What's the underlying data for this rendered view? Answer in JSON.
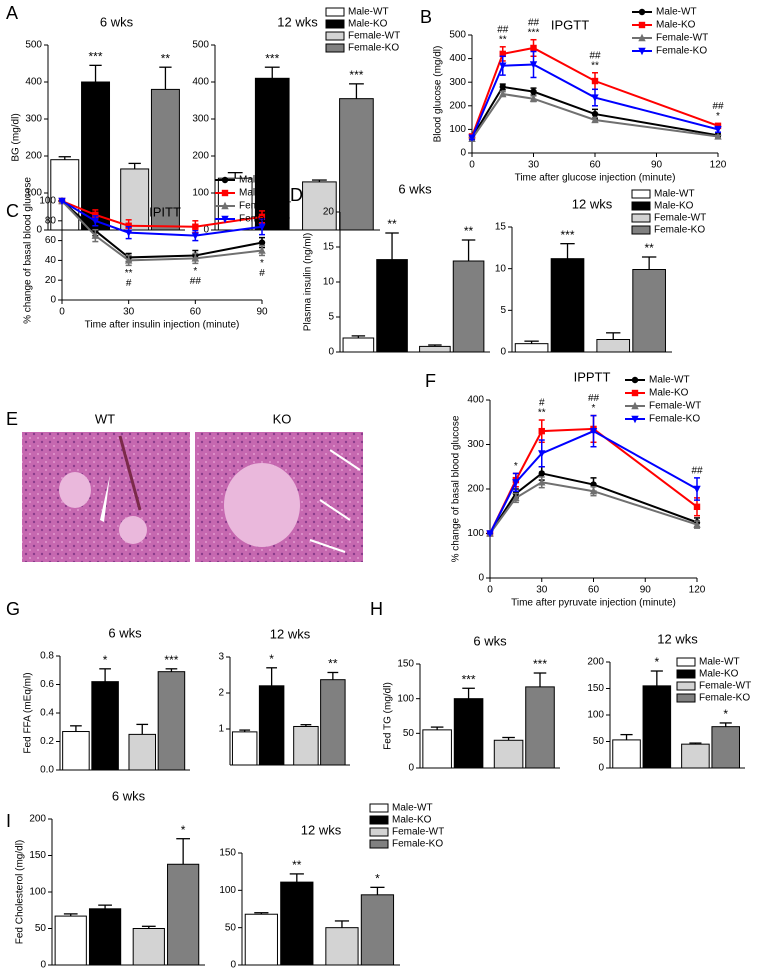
{
  "chart_data": [
    {
      "type": "bar",
      "panel": "A",
      "title": "6 wks",
      "ylabel": "BG (mg/dl)",
      "ylim": [
        0,
        500
      ],
      "yticks": [
        0,
        100,
        200,
        300,
        400,
        500
      ],
      "colors": [
        "#ffffff",
        "#000000",
        "#d3d3d3",
        "#808080"
      ],
      "values": [
        190,
        400,
        165,
        380
      ],
      "errors": [
        8,
        45,
        15,
        60
      ],
      "annotations": [
        null,
        "***",
        null,
        "**"
      ]
    },
    {
      "type": "bar",
      "title": "12 wks",
      "ylim": [
        0,
        500
      ],
      "yticks": [
        0,
        100,
        200,
        300,
        400,
        500
      ],
      "colors": [
        "#ffffff",
        "#000000",
        "#d3d3d3",
        "#808080"
      ],
      "values": [
        140,
        410,
        130,
        355
      ],
      "errors": [
        15,
        30,
        5,
        40
      ],
      "annotations": [
        null,
        "***",
        null,
        "***"
      ],
      "legend": [
        {
          "name": "Male-WT",
          "color": "#ffffff"
        },
        {
          "name": "Male-KO",
          "color": "#000000"
        },
        {
          "name": "Female-WT",
          "color": "#d3d3d3"
        },
        {
          "name": "Female-KO",
          "color": "#808080"
        }
      ]
    },
    {
      "type": "line",
      "panel": "B",
      "title": "IPGTT",
      "xlabel": "Time after glucose injection (minute)",
      "ylabel": "Blood glucose (mg/dl)",
      "x": [
        0,
        15,
        30,
        60,
        120
      ],
      "xlim": [
        0,
        120
      ],
      "xticks": [
        0,
        30,
        60,
        90,
        120
      ],
      "ylim": [
        0,
        500
      ],
      "yticks": [
        0,
        100,
        200,
        300,
        400,
        500
      ],
      "series": [
        {
          "name": "Male-WT",
          "color": "#000000",
          "marker": "circle",
          "values": [
            65,
            280,
            260,
            165,
            75
          ],
          "errors": [
            5,
            12,
            15,
            20,
            6
          ]
        },
        {
          "name": "Male-KO",
          "color": "#ff0000",
          "marker": "square",
          "values": [
            70,
            420,
            445,
            305,
            115
          ],
          "errors": [
            10,
            30,
            35,
            35,
            10
          ]
        },
        {
          "name": "Female-WT",
          "color": "#707070",
          "marker": "triangle",
          "values": [
            60,
            250,
            230,
            140,
            70
          ],
          "errors": [
            5,
            10,
            12,
            10,
            5
          ]
        },
        {
          "name": "Female-KO",
          "color": "#0000ff",
          "marker": "triangle-down",
          "values": [
            65,
            370,
            375,
            235,
            100
          ],
          "errors": [
            8,
            40,
            55,
            35,
            12
          ]
        }
      ],
      "annotations": [
        {
          "x": 15,
          "texts": [
            "##",
            "**"
          ]
        },
        {
          "x": 30,
          "texts": [
            "##",
            "***"
          ]
        },
        {
          "x": 60,
          "texts": [
            "##",
            "**"
          ]
        },
        {
          "x": 120,
          "texts": [
            "##",
            "*"
          ]
        }
      ]
    },
    {
      "type": "line",
      "panel": "C",
      "title": "IPITT",
      "xlabel": "Time after insulin injection (minute)",
      "ylabel": "% change of basal blood glucose",
      "x": [
        0,
        15,
        30,
        60,
        90
      ],
      "xlim": [
        0,
        90
      ],
      "xticks": [
        0,
        30,
        60,
        90
      ],
      "ylim": [
        0,
        100
      ],
      "yticks": [
        0,
        20,
        40,
        60,
        80,
        100
      ],
      "series": [
        {
          "name": "Male-WT",
          "color": "#000000",
          "marker": "circle",
          "values": [
            100,
            70,
            43,
            45,
            58
          ],
          "errors": [
            0,
            5,
            4,
            5,
            5
          ]
        },
        {
          "name": "Male-KO",
          "color": "#ff0000",
          "marker": "square",
          "values": [
            100,
            86,
            75,
            74,
            84
          ],
          "errors": [
            0,
            5,
            6,
            6,
            6
          ]
        },
        {
          "name": "Female-WT",
          "color": "#707070",
          "marker": "triangle",
          "values": [
            100,
            65,
            40,
            42,
            50
          ],
          "errors": [
            0,
            6,
            5,
            5,
            5
          ]
        },
        {
          "name": "Female-KO",
          "color": "#0000ff",
          "marker": "triangle-down",
          "values": [
            100,
            80,
            68,
            65,
            74
          ],
          "errors": [
            0,
            5,
            6,
            5,
            8
          ]
        }
      ],
      "annotations": [
        {
          "x": 30,
          "texts": [
            "**",
            "#"
          ]
        },
        {
          "x": 60,
          "texts": [
            "*",
            "##"
          ]
        },
        {
          "x": 90,
          "texts": [
            "*",
            "#"
          ]
        }
      ]
    },
    {
      "type": "bar",
      "panel": "D",
      "title": "6 wks",
      "ylabel": "Plasma insulin (ng/ml)",
      "ylim": [
        0,
        20
      ],
      "yticks": [
        0,
        5,
        10,
        15,
        20
      ],
      "colors": [
        "#ffffff",
        "#000000",
        "#d3d3d3",
        "#808080"
      ],
      "values": [
        2,
        13.2,
        0.8,
        13
      ],
      "errors": [
        0.3,
        3.8,
        0.2,
        3
      ],
      "annotations": [
        null,
        "**",
        null,
        "**"
      ]
    },
    {
      "type": "bar",
      "title": "12 wks",
      "ylim": [
        0,
        15
      ],
      "yticks": [
        0,
        5,
        10,
        15
      ],
      "colors": [
        "#ffffff",
        "#000000",
        "#d3d3d3",
        "#808080"
      ],
      "values": [
        1,
        11.2,
        1.5,
        9.9
      ],
      "errors": [
        0.3,
        1.8,
        0.8,
        1.5
      ],
      "annotations": [
        null,
        "***",
        null,
        "**"
      ],
      "legend": [
        {
          "name": "Male-WT",
          "color": "#ffffff"
        },
        {
          "name": "Male-KO",
          "color": "#000000"
        },
        {
          "name": "Female-WT",
          "color": "#d3d3d3"
        },
        {
          "name": "Female-KO",
          "color": "#808080"
        }
      ]
    },
    {
      "type": "line",
      "panel": "F",
      "title": "IPPTT",
      "xlabel": "Time after pyruvate injection (minute)",
      "ylabel": "% change of basal blood glucose",
      "x": [
        0,
        15,
        30,
        60,
        120
      ],
      "xlim": [
        0,
        120
      ],
      "xticks": [
        0,
        30,
        60,
        90,
        120
      ],
      "ylim": [
        0,
        400
      ],
      "yticks": [
        0,
        100,
        200,
        300,
        400
      ],
      "series": [
        {
          "name": "Male-WT",
          "color": "#000000",
          "marker": "circle",
          "values": [
            100,
            190,
            235,
            210,
            125
          ],
          "errors": [
            0,
            10,
            15,
            15,
            10
          ]
        },
        {
          "name": "Male-KO",
          "color": "#ff0000",
          "marker": "square",
          "values": [
            100,
            220,
            330,
            335,
            160
          ],
          "errors": [
            0,
            15,
            25,
            30,
            20
          ]
        },
        {
          "name": "Female-WT",
          "color": "#707070",
          "marker": "triangle",
          "values": [
            100,
            180,
            215,
            195,
            120
          ],
          "errors": [
            0,
            10,
            12,
            10,
            8
          ]
        },
        {
          "name": "Female-KO",
          "color": "#0000ff",
          "marker": "triangle-down",
          "values": [
            100,
            215,
            280,
            330,
            200
          ],
          "errors": [
            0,
            20,
            30,
            35,
            25
          ]
        }
      ],
      "annotations": [
        {
          "x": 15,
          "texts": [
            "*"
          ]
        },
        {
          "x": 30,
          "texts": [
            "#",
            "**"
          ]
        },
        {
          "x": 60,
          "texts": [
            "##",
            "*"
          ]
        },
        {
          "x": 120,
          "texts": [
            "##"
          ]
        }
      ]
    },
    {
      "type": "bar",
      "panel": "G",
      "title": "6 wks",
      "ylabel": "Fed FFA (mEq/ml)",
      "ylim": [
        0,
        0.8
      ],
      "yticks": [
        {
          "value": 0,
          "label": "0.0"
        },
        0.2,
        0.4,
        0.6,
        0.8
      ],
      "colors": [
        "#ffffff",
        "#000000",
        "#d3d3d3",
        "#808080"
      ],
      "values": [
        0.27,
        0.62,
        0.25,
        0.69
      ],
      "errors": [
        0.04,
        0.09,
        0.07,
        0.02
      ],
      "annotations": [
        null,
        "*",
        null,
        "***"
      ]
    },
    {
      "type": "bar",
      "title": "12 wks",
      "ylim": [
        0,
        3
      ],
      "yticks": [
        1,
        2,
        3
      ],
      "colors": [
        "#ffffff",
        "#000000",
        "#d3d3d3",
        "#808080"
      ],
      "values": [
        0.92,
        2.2,
        1.07,
        2.37
      ],
      "errors": [
        0.05,
        0.5,
        0.05,
        0.2
      ],
      "annotations": [
        null,
        "*",
        null,
        "**"
      ]
    },
    {
      "type": "bar",
      "panel": "H",
      "title": "6 wks",
      "ylabel": "Fed TG (mg/dl)",
      "ylim": [
        0,
        150
      ],
      "yticks": [
        0,
        50,
        100,
        150
      ],
      "colors": [
        "#ffffff",
        "#000000",
        "#d3d3d3",
        "#808080"
      ],
      "values": [
        55,
        100,
        40,
        117
      ],
      "errors": [
        4,
        15,
        4,
        20
      ],
      "annotations": [
        null,
        "***",
        null,
        "***"
      ]
    },
    {
      "type": "bar",
      "title": "12 wks",
      "ylim": [
        0,
        200
      ],
      "yticks": [
        0,
        50,
        100,
        150,
        200
      ],
      "colors": [
        "#ffffff",
        "#000000",
        "#d3d3d3",
        "#808080"
      ],
      "values": [
        53,
        155,
        45,
        78
      ],
      "errors": [
        10,
        28,
        2,
        7
      ],
      "annotations": [
        null,
        "*",
        null,
        "*"
      ],
      "legend": [
        {
          "name": "Male-WT",
          "color": "#ffffff"
        },
        {
          "name": "Male-KO",
          "color": "#000000"
        },
        {
          "name": "Female-WT",
          "color": "#d3d3d3"
        },
        {
          "name": "Female-KO",
          "color": "#808080"
        }
      ]
    },
    {
      "type": "bar",
      "panel": "I",
      "title": "6 wks",
      "ylabel": "Fed Cholesterol (mg/dl)",
      "ylim": [
        0,
        200
      ],
      "yticks": [
        0,
        50,
        100,
        150,
        200
      ],
      "colors": [
        "#ffffff",
        "#000000",
        "#d3d3d3",
        "#808080"
      ],
      "values": [
        67,
        77,
        50,
        138
      ],
      "errors": [
        3,
        5,
        3,
        35
      ],
      "annotations": [
        null,
        null,
        null,
        "*"
      ]
    },
    {
      "type": "bar",
      "title": "12 wks",
      "ylim": [
        0,
        150
      ],
      "yticks": [
        0,
        50,
        100,
        150
      ],
      "colors": [
        "#ffffff",
        "#000000",
        "#d3d3d3",
        "#808080"
      ],
      "values": [
        68,
        111,
        50,
        94
      ],
      "errors": [
        2,
        11,
        9,
        10
      ],
      "annotations": [
        null,
        "**",
        null,
        "*"
      ],
      "legend": [
        {
          "name": "Male-WT",
          "color": "#ffffff"
        },
        {
          "name": "Male-KO",
          "color": "#000000"
        },
        {
          "name": "Female-WT",
          "color": "#d3d3d3"
        },
        {
          "name": "Female-KO",
          "color": "#808080"
        }
      ]
    }
  ],
  "images": {
    "panel": "E",
    "labels": [
      "WT",
      "KO"
    ]
  }
}
